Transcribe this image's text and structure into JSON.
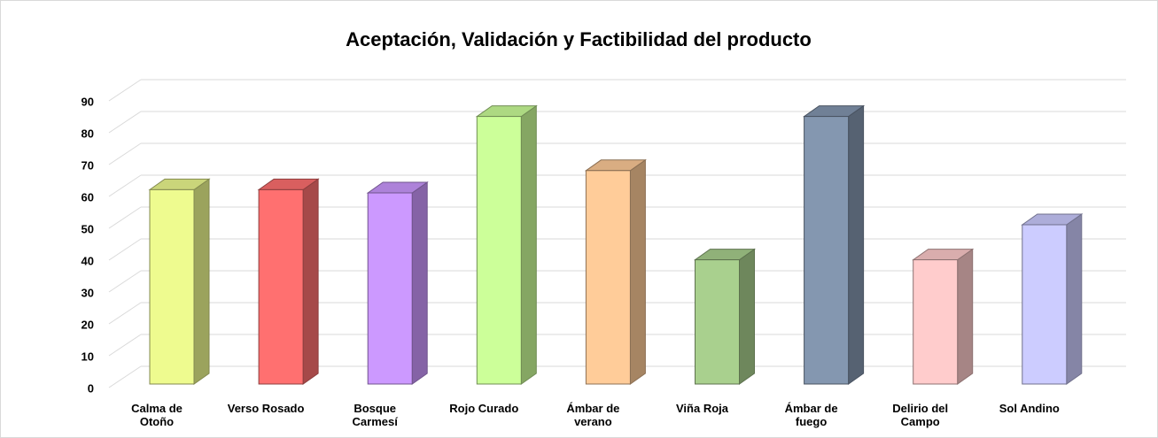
{
  "chart_data": {
    "type": "bar3d",
    "title": "Aceptación, Validación y Factibilidad del producto",
    "categories": [
      "Calma de Otoño",
      "Verso Rosado",
      "Bosque Carmesí",
      "Rojo Curado",
      "Ámbar de verano",
      "Viña Roja",
      "Ámbar de fuego",
      "Delirio del Campo",
      "Sol Andino"
    ],
    "values": [
      61,
      61,
      60,
      84,
      67,
      39,
      84,
      39,
      50
    ],
    "colors": [
      "#eefb8f",
      "#ff7070",
      "#cc99ff",
      "#ccff99",
      "#ffcc99",
      "#a9d08e",
      "#8497b0",
      "#ffcccc",
      "#ccccff"
    ],
    "ylim": [
      0,
      90
    ],
    "yticks": [
      0,
      10,
      20,
      30,
      40,
      50,
      60,
      70,
      80,
      90
    ],
    "grid": true
  }
}
